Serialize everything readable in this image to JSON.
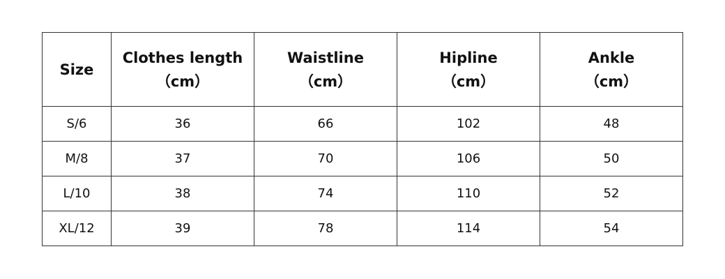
{
  "table": {
    "header": [
      [
        "Size"
      ],
      [
        "Clothes length",
        "（cm）"
      ],
      [
        "Waistline",
        "（cm）"
      ],
      [
        "Hipline",
        "（cm）"
      ],
      [
        "Ankle",
        "（cm）"
      ]
    ],
    "rows": [
      [
        "S/6",
        36,
        66,
        102,
        48
      ],
      [
        "M/8",
        37,
        70,
        106,
        50
      ],
      [
        "L/10",
        38,
        74,
        110,
        52
      ],
      [
        "XL/12",
        39,
        78,
        114,
        54
      ]
    ]
  }
}
